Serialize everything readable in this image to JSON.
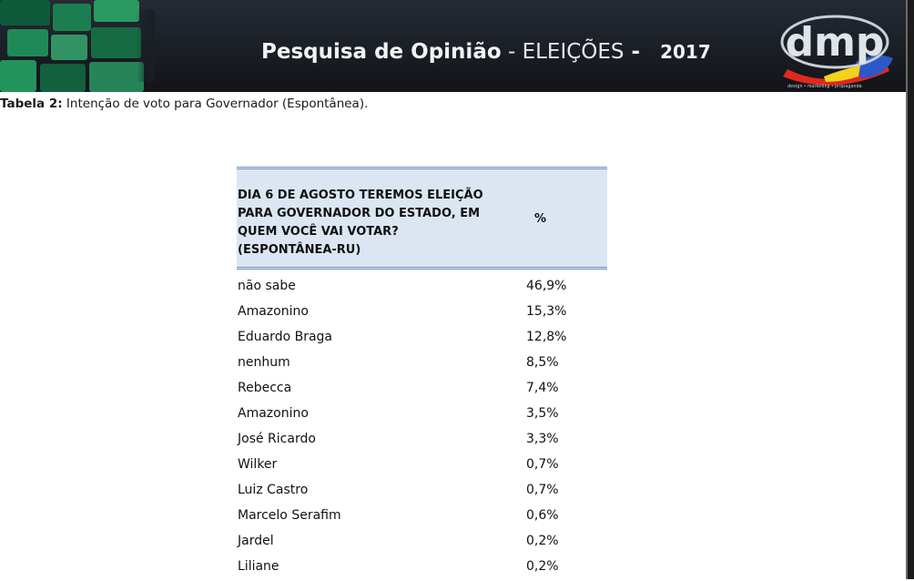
{
  "header": {
    "title_bold": "Pesquisa de Opinião",
    "title_separator": " - ",
    "title_light": "ELEIÇÕES",
    "title_dash": " - ",
    "year": "2017",
    "logo_text": "dmp",
    "logo_tagline": "design • marketing • propaganda",
    "colors": {
      "bar": "#1a1e25",
      "mosaic_green": "#1f8a57",
      "logo_red": "#e0281e",
      "logo_yellow": "#f2d21b",
      "logo_blue": "#2c58c9"
    }
  },
  "caption": {
    "label": "Tabela 2:",
    "text": " Intenção de voto para Governador (Espontânea)."
  },
  "table": {
    "question": "DIA 6 DE AGOSTO TEREMOS ELEIÇÃO PARA GOVERNADOR DO ESTADO, EM QUEM VOCÊ VAI VOTAR? (ESPONTÂNEA-RU)",
    "percent_header": "%",
    "header_color": "#dbe6f2",
    "rule_color": "#6f93bf",
    "rows": [
      {
        "name": "não sabe",
        "value": "46,9%"
      },
      {
        "name": "Amazonino",
        "value": "15,3%"
      },
      {
        "name": "Eduardo Braga",
        "value": "12,8%"
      },
      {
        "name": "nenhum",
        "value": "8,5%"
      },
      {
        "name": "Rebecca",
        "value": "7,4%"
      },
      {
        "name": "Amazonino",
        "value": "3,5%"
      },
      {
        "name": "José Ricardo",
        "value": "3,3%"
      },
      {
        "name": "Wilker",
        "value": "0,7%"
      },
      {
        "name": "Luiz Castro",
        "value": "0,7%"
      },
      {
        "name": "Marcelo Serafim",
        "value": "0,6%"
      },
      {
        "name": "Jardel",
        "value": "0,2%"
      },
      {
        "name": "Liliane",
        "value": "0,2%"
      }
    ]
  }
}
